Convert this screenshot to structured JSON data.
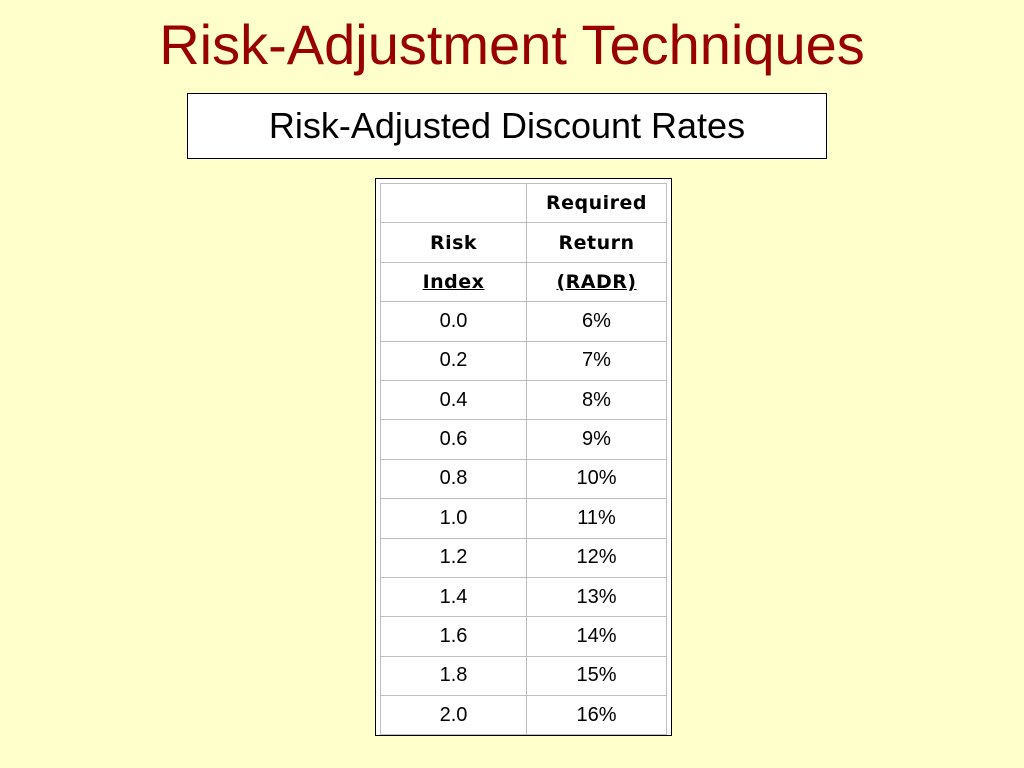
{
  "title": "Risk-Adjustment Techniques",
  "subtitle": "Risk-Adjusted Discount Rates",
  "table": {
    "header_rows": [
      [
        "",
        "Required"
      ],
      [
        "Risk",
        "Return"
      ],
      [
        "Index",
        "(RADR)"
      ]
    ],
    "rows": [
      [
        "0.0",
        "6%"
      ],
      [
        "0.2",
        "7%"
      ],
      [
        "0.4",
        "8%"
      ],
      [
        "0.6",
        "9%"
      ],
      [
        "0.8",
        "10%"
      ],
      [
        "1.0",
        "11%"
      ],
      [
        "1.2",
        "12%"
      ],
      [
        "1.4",
        "13%"
      ],
      [
        "1.6",
        "14%"
      ],
      [
        "1.8",
        "15%"
      ],
      [
        "2.0",
        "16%"
      ]
    ]
  },
  "colors": {
    "background": "#ffffcc",
    "title": "#990000"
  }
}
